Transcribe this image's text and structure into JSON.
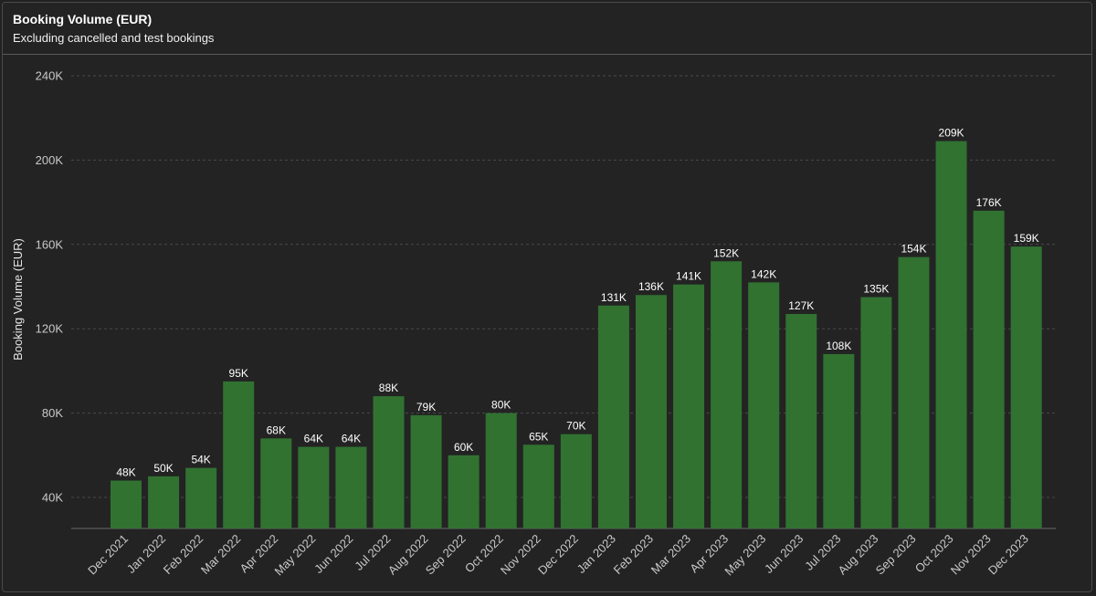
{
  "header": {
    "title": "Booking Volume (EUR)",
    "subtitle": "Excluding cancelled and test bookings"
  },
  "colors": {
    "bar": "#317231",
    "background": "#212121",
    "grid": "#4a4a4a"
  },
  "chart_data": {
    "type": "bar",
    "title": "Booking Volume (EUR)",
    "subtitle": "Excluding cancelled and test bookings",
    "xlabel": "",
    "ylabel": "Booking Volume (EUR)",
    "ylim": [
      25000,
      240000
    ],
    "yticks": [
      40000,
      80000,
      120000,
      160000,
      200000,
      240000
    ],
    "ytick_labels": [
      "40K",
      "80K",
      "120K",
      "160K",
      "200K",
      "240K"
    ],
    "grid": "horizontal dashed",
    "categories": [
      "Dec 2021",
      "Jan 2022",
      "Feb 2022",
      "Mar 2022",
      "Apr 2022",
      "May 2022",
      "Jun 2022",
      "Jul 2022",
      "Aug 2022",
      "Sep 2022",
      "Oct 2022",
      "Nov 2022",
      "Dec 2022",
      "Jan 2023",
      "Feb 2023",
      "Mar 2023",
      "Apr 2023",
      "May 2023",
      "Jun 2023",
      "Jul 2023",
      "Aug 2023",
      "Sep 2023",
      "Oct 2023",
      "Nov 2023",
      "Dec 2023"
    ],
    "values": [
      48000,
      50000,
      54000,
      95000,
      68000,
      64000,
      64000,
      88000,
      79000,
      60000,
      80000,
      65000,
      70000,
      131000,
      136000,
      141000,
      152000,
      142000,
      127000,
      108000,
      135000,
      154000,
      209000,
      176000,
      159000
    ],
    "data_labels": [
      "48K",
      "50K",
      "54K",
      "95K",
      "68K",
      "64K",
      "64K",
      "88K",
      "79K",
      "60K",
      "80K",
      "65K",
      "70K",
      "131K",
      "136K",
      "141K",
      "152K",
      "142K",
      "127K",
      "108K",
      "135K",
      "154K",
      "209K",
      "176K",
      "159K"
    ]
  }
}
